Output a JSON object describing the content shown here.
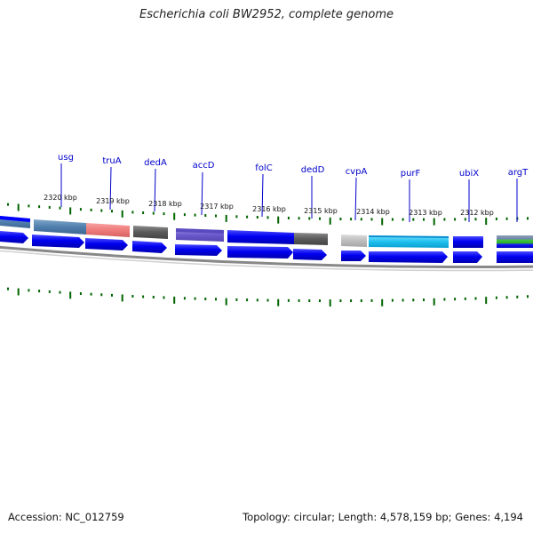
{
  "title": "Escherichia coli BW2952, complete genome",
  "accession": "Accession: NC_012759",
  "summary": "Topology: circular; Length: 4,578,159 bp; Genes: 4,194",
  "scale_labels": [
    "2320 kbp",
    "2319 kbp",
    "2318 kbp",
    "2317 kbp",
    "2316 kbp",
    "2315 kbp",
    "2314 kbp",
    "2313 kbp",
    "2312 kbp"
  ],
  "gene_labels": [
    "usg",
    "truA",
    "dedA",
    "accD",
    "folC",
    "dedD",
    "cvpA",
    "purF",
    "ubiX",
    "argT"
  ],
  "colors": {
    "cds": "#0000ff",
    "tick": "#006400",
    "label": "#0000cc",
    "backbone": "#808080"
  }
}
